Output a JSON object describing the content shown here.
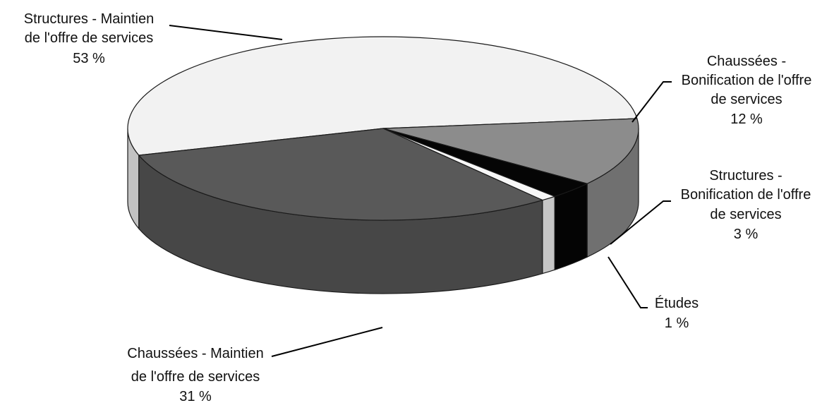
{
  "chart_data": {
    "type": "pie",
    "style": "3d",
    "title": "",
    "slices": [
      {
        "label": [
          "Structures - Maintien",
          "de l'offre de services"
        ],
        "value": 53,
        "value_label": "53 %",
        "color": "#f2f2f2"
      },
      {
        "label": [
          "Chaussées -",
          "Bonification de l'offre",
          "de services"
        ],
        "value": 12,
        "value_label": "12 %",
        "color": "#8c8c8c"
      },
      {
        "label": [
          "Structures -",
          "Bonification de l'offre",
          "de services"
        ],
        "value": 3,
        "value_label": "3 %",
        "color": "#050505"
      },
      {
        "label": [
          "Études"
        ],
        "value": 1,
        "value_label": "1 %",
        "color": "#f7f7f7"
      },
      {
        "label": [
          "Chaussées - Maintien",
          "de l'offre de services"
        ],
        "value": 31,
        "value_label": "31 %",
        "color": "#595959"
      }
    ]
  }
}
